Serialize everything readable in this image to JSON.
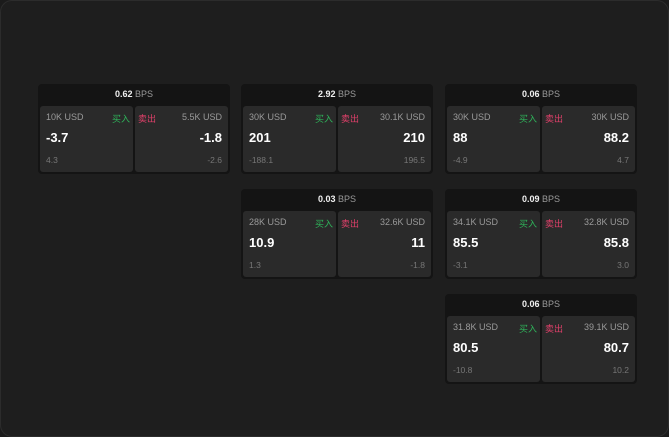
{
  "unit": "BPS",
  "buy_label": "买入",
  "sell_label": "卖出",
  "colors": {
    "buy": "#2fb45a",
    "sell": "#e0406a"
  },
  "cards": [
    {
      "bps": "0.62",
      "bid": {
        "size": "10K USD",
        "price": "-3.7",
        "change": "4.3"
      },
      "ask": {
        "size": "5.5K USD",
        "price": "-1.8",
        "change": "-2.6"
      }
    },
    {
      "bps": "2.92",
      "bid": {
        "size": "30K USD",
        "price": "201",
        "change": "-188.1"
      },
      "ask": {
        "size": "30.1K USD",
        "price": "210",
        "change": "196.5"
      }
    },
    {
      "bps": "0.06",
      "bid": {
        "size": "30K USD",
        "price": "88",
        "change": "-4.9"
      },
      "ask": {
        "size": "30K USD",
        "price": "88.2",
        "change": "4.7"
      }
    },
    {
      "bps": "0.03",
      "bid": {
        "size": "28K USD",
        "price": "10.9",
        "change": "1.3"
      },
      "ask": {
        "size": "32.6K USD",
        "price": "11",
        "change": "-1.8"
      }
    },
    {
      "bps": "0.09",
      "bid": {
        "size": "34.1K USD",
        "price": "85.5",
        "change": "-3.1"
      },
      "ask": {
        "size": "32.8K USD",
        "price": "85.8",
        "change": "3.0"
      }
    },
    {
      "bps": "0.06",
      "bid": {
        "size": "31.8K USD",
        "price": "80.5",
        "change": "-10.8"
      },
      "ask": {
        "size": "39.1K USD",
        "price": "80.7",
        "change": "10.2"
      }
    }
  ]
}
